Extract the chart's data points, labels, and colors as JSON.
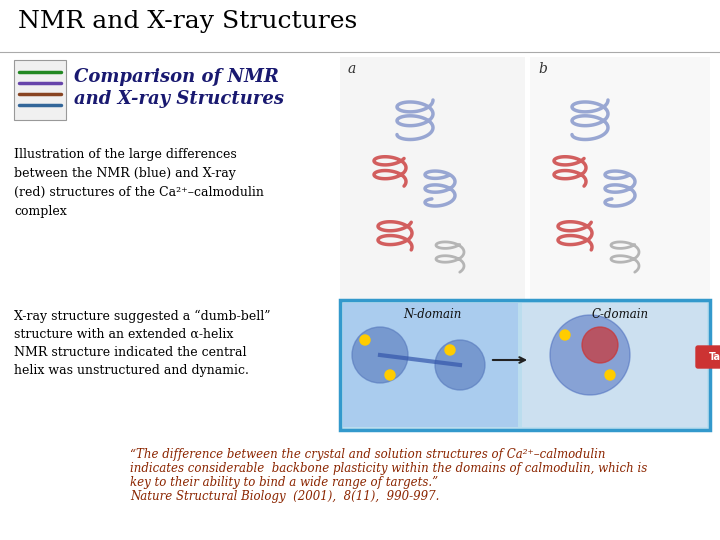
{
  "title": "NMR and X-ray Structures",
  "subtitle_line1": "Comparison of NMR",
  "subtitle_line2": "and X-ray Structures",
  "body_text": "Illustration of the large differences\nbetween the NMR (blue) and X-ray\n(red) structures of the Ca²⁺–calmodulin\ncomplex",
  "body2_line1": "X-ray structure suggested a “dumb-bell”",
  "body2_line2": "structure with an extended α-helix",
  "body2_line3": "NMR structure indicated the central",
  "body2_line4": "helix was unstructured and dynamic.",
  "quote_line1": "“The difference between the crystal and solution structures of Ca²⁺–calmodulin",
  "quote_line2": "indicates considerable  backbone plasticity within the domains of calmodulin, which is",
  "quote_line3": "key to their ability to bind a wide range of targets.”",
  "quote_line4": "Nature Structural Biology  (2001),  8(11),  990-997.",
  "background_color": "#ffffff",
  "title_color": "#000000",
  "subtitle_color": "#191970",
  "body_color": "#000000",
  "quote_color": "#8B2500",
  "title_fontsize": 18,
  "subtitle_fontsize": 13,
  "body_fontsize": 9,
  "quote_fontsize": 8.5
}
